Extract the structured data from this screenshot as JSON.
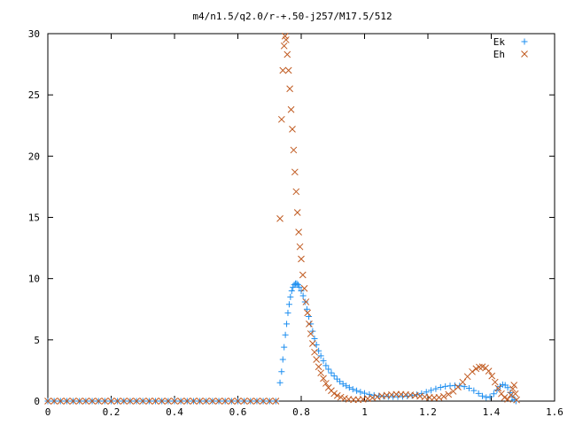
{
  "chart_data": {
    "type": "scatter",
    "title": "m4/n1.5/q2.0/r-+.50-j257/M17.5/512",
    "xlabel": "",
    "ylabel": "",
    "xlim": [
      0,
      1.6
    ],
    "ylim": [
      0,
      30
    ],
    "grid": false,
    "legend_position": "top-right",
    "xticks": [
      0,
      0.2,
      0.4,
      0.6,
      0.8,
      1,
      1.2,
      1.4,
      1.6
    ],
    "xtick_labels": [
      "0",
      "0.2",
      "0.4",
      "0.6",
      "0.8",
      "1",
      "1.2",
      "1.4",
      "1.6"
    ],
    "yticks": [
      0,
      5,
      10,
      15,
      20,
      25,
      30
    ],
    "ytick_labels": [
      "0",
      "5",
      "10",
      "15",
      "20",
      "25",
      "30"
    ],
    "series": [
      {
        "name": "Ek",
        "marker": "plus",
        "color": "#1e8ff0",
        "points": [
          [
            0.0,
            0
          ],
          [
            0.02,
            0
          ],
          [
            0.04,
            0
          ],
          [
            0.06,
            0
          ],
          [
            0.08,
            0
          ],
          [
            0.1,
            0
          ],
          [
            0.12,
            0
          ],
          [
            0.14,
            0
          ],
          [
            0.16,
            0
          ],
          [
            0.18,
            0
          ],
          [
            0.2,
            0
          ],
          [
            0.22,
            0
          ],
          [
            0.24,
            0
          ],
          [
            0.26,
            0
          ],
          [
            0.28,
            0
          ],
          [
            0.3,
            0
          ],
          [
            0.32,
            0
          ],
          [
            0.34,
            0
          ],
          [
            0.36,
            0
          ],
          [
            0.38,
            0
          ],
          [
            0.4,
            0
          ],
          [
            0.42,
            0
          ],
          [
            0.44,
            0
          ],
          [
            0.46,
            0
          ],
          [
            0.48,
            0
          ],
          [
            0.5,
            0
          ],
          [
            0.52,
            0
          ],
          [
            0.54,
            0
          ],
          [
            0.56,
            0
          ],
          [
            0.58,
            0
          ],
          [
            0.6,
            0
          ],
          [
            0.62,
            0
          ],
          [
            0.64,
            0
          ],
          [
            0.66,
            0
          ],
          [
            0.68,
            0
          ],
          [
            0.7,
            0
          ],
          [
            0.72,
            0
          ],
          [
            0.733,
            1.5
          ],
          [
            0.738,
            2.4
          ],
          [
            0.742,
            3.4
          ],
          [
            0.746,
            4.4
          ],
          [
            0.75,
            5.4
          ],
          [
            0.754,
            6.3
          ],
          [
            0.758,
            7.2
          ],
          [
            0.762,
            7.9
          ],
          [
            0.766,
            8.5
          ],
          [
            0.77,
            9.0
          ],
          [
            0.774,
            9.3
          ],
          [
            0.778,
            9.5
          ],
          [
            0.782,
            9.6
          ],
          [
            0.786,
            9.6
          ],
          [
            0.79,
            9.5
          ],
          [
            0.794,
            9.3
          ],
          [
            0.8,
            9.0
          ],
          [
            0.806,
            8.6
          ],
          [
            0.812,
            8.1
          ],
          [
            0.818,
            7.5
          ],
          [
            0.824,
            6.9
          ],
          [
            0.83,
            6.3
          ],
          [
            0.836,
            5.7
          ],
          [
            0.842,
            5.1
          ],
          [
            0.848,
            4.6
          ],
          [
            0.855,
            4.1
          ],
          [
            0.862,
            3.7
          ],
          [
            0.87,
            3.3
          ],
          [
            0.878,
            2.9
          ],
          [
            0.886,
            2.6
          ],
          [
            0.895,
            2.3
          ],
          [
            0.904,
            2.05
          ],
          [
            0.913,
            1.8
          ],
          [
            0.922,
            1.6
          ],
          [
            0.932,
            1.4
          ],
          [
            0.942,
            1.25
          ],
          [
            0.952,
            1.1
          ],
          [
            0.963,
            0.97
          ],
          [
            0.975,
            0.85
          ],
          [
            0.987,
            0.74
          ],
          [
            1.0,
            0.64
          ],
          [
            1.015,
            0.55
          ],
          [
            1.03,
            0.48
          ],
          [
            1.045,
            0.42
          ],
          [
            1.06,
            0.38
          ],
          [
            1.075,
            0.36
          ],
          [
            1.09,
            0.35
          ],
          [
            1.105,
            0.35
          ],
          [
            1.12,
            0.37
          ],
          [
            1.135,
            0.4
          ],
          [
            1.15,
            0.45
          ],
          [
            1.165,
            0.52
          ],
          [
            1.18,
            0.62
          ],
          [
            1.195,
            0.74
          ],
          [
            1.21,
            0.88
          ],
          [
            1.225,
            1.0
          ],
          [
            1.24,
            1.12
          ],
          [
            1.255,
            1.2
          ],
          [
            1.27,
            1.25
          ],
          [
            1.285,
            1.27
          ],
          [
            1.3,
            1.25
          ],
          [
            1.315,
            1.18
          ],
          [
            1.33,
            1.05
          ],
          [
            1.345,
            0.86
          ],
          [
            1.36,
            0.62
          ],
          [
            1.372,
            0.42
          ],
          [
            1.384,
            0.3
          ],
          [
            1.396,
            0.35
          ],
          [
            1.408,
            0.6
          ],
          [
            1.418,
            0.9
          ],
          [
            1.428,
            1.2
          ],
          [
            1.436,
            1.35
          ],
          [
            1.444,
            1.3
          ],
          [
            1.452,
            1.1
          ],
          [
            1.46,
            0.7
          ],
          [
            1.466,
            0.35
          ],
          [
            1.472,
            0.1
          ],
          [
            1.478,
            0.0
          ]
        ]
      },
      {
        "name": "Eh",
        "marker": "cross",
        "color": "#c05a20",
        "points": [
          [
            0.0,
            0
          ],
          [
            0.02,
            0
          ],
          [
            0.04,
            0
          ],
          [
            0.06,
            0
          ],
          [
            0.08,
            0
          ],
          [
            0.1,
            0
          ],
          [
            0.12,
            0
          ],
          [
            0.14,
            0
          ],
          [
            0.16,
            0
          ],
          [
            0.18,
            0
          ],
          [
            0.2,
            0
          ],
          [
            0.22,
            0
          ],
          [
            0.24,
            0
          ],
          [
            0.26,
            0
          ],
          [
            0.28,
            0
          ],
          [
            0.3,
            0
          ],
          [
            0.32,
            0
          ],
          [
            0.34,
            0
          ],
          [
            0.36,
            0
          ],
          [
            0.38,
            0
          ],
          [
            0.4,
            0
          ],
          [
            0.42,
            0
          ],
          [
            0.44,
            0
          ],
          [
            0.46,
            0
          ],
          [
            0.48,
            0
          ],
          [
            0.5,
            0
          ],
          [
            0.52,
            0
          ],
          [
            0.54,
            0
          ],
          [
            0.56,
            0
          ],
          [
            0.58,
            0
          ],
          [
            0.6,
            0
          ],
          [
            0.62,
            0
          ],
          [
            0.64,
            0
          ],
          [
            0.66,
            0
          ],
          [
            0.68,
            0
          ],
          [
            0.7,
            0
          ],
          [
            0.72,
            0
          ],
          [
            0.733,
            14.9
          ],
          [
            0.738,
            23.0
          ],
          [
            0.742,
            27.0
          ],
          [
            0.746,
            29.0
          ],
          [
            0.749,
            29.8
          ],
          [
            0.752,
            29.5
          ],
          [
            0.756,
            28.3
          ],
          [
            0.76,
            27.0
          ],
          [
            0.764,
            25.5
          ],
          [
            0.768,
            23.8
          ],
          [
            0.772,
            22.2
          ],
          [
            0.776,
            20.5
          ],
          [
            0.78,
            18.7
          ],
          [
            0.784,
            17.1
          ],
          [
            0.788,
            15.4
          ],
          [
            0.792,
            13.8
          ],
          [
            0.796,
            12.6
          ],
          [
            0.8,
            11.6
          ],
          [
            0.805,
            10.3
          ],
          [
            0.81,
            9.2
          ],
          [
            0.815,
            8.1
          ],
          [
            0.82,
            7.2
          ],
          [
            0.825,
            6.3
          ],
          [
            0.83,
            5.5
          ],
          [
            0.836,
            4.7
          ],
          [
            0.842,
            4.0
          ],
          [
            0.848,
            3.4
          ],
          [
            0.855,
            2.8
          ],
          [
            0.862,
            2.3
          ],
          [
            0.87,
            1.85
          ],
          [
            0.878,
            1.45
          ],
          [
            0.886,
            1.1
          ],
          [
            0.895,
            0.85
          ],
          [
            0.904,
            0.62
          ],
          [
            0.914,
            0.45
          ],
          [
            0.925,
            0.32
          ],
          [
            0.937,
            0.22
          ],
          [
            0.95,
            0.15
          ],
          [
            0.965,
            0.12
          ],
          [
            0.98,
            0.12
          ],
          [
            0.995,
            0.15
          ],
          [
            1.01,
            0.2
          ],
          [
            1.025,
            0.27
          ],
          [
            1.04,
            0.34
          ],
          [
            1.055,
            0.42
          ],
          [
            1.07,
            0.48
          ],
          [
            1.085,
            0.52
          ],
          [
            1.1,
            0.55
          ],
          [
            1.115,
            0.55
          ],
          [
            1.13,
            0.53
          ],
          [
            1.145,
            0.5
          ],
          [
            1.16,
            0.46
          ],
          [
            1.175,
            0.4
          ],
          [
            1.19,
            0.34
          ],
          [
            1.205,
            0.3
          ],
          [
            1.22,
            0.28
          ],
          [
            1.235,
            0.3
          ],
          [
            1.25,
            0.38
          ],
          [
            1.265,
            0.55
          ],
          [
            1.28,
            0.8
          ],
          [
            1.295,
            1.15
          ],
          [
            1.31,
            1.55
          ],
          [
            1.325,
            2.0
          ],
          [
            1.34,
            2.4
          ],
          [
            1.352,
            2.65
          ],
          [
            1.362,
            2.78
          ],
          [
            1.372,
            2.8
          ],
          [
            1.382,
            2.7
          ],
          [
            1.392,
            2.45
          ],
          [
            1.402,
            2.05
          ],
          [
            1.412,
            1.55
          ],
          [
            1.422,
            1.05
          ],
          [
            1.432,
            0.6
          ],
          [
            1.442,
            0.3
          ],
          [
            1.452,
            0.15
          ],
          [
            1.462,
            0.5
          ],
          [
            1.468,
            1.0
          ],
          [
            1.472,
            1.3
          ],
          [
            1.476,
            0.6
          ],
          [
            1.48,
            0.1
          ]
        ]
      }
    ]
  }
}
